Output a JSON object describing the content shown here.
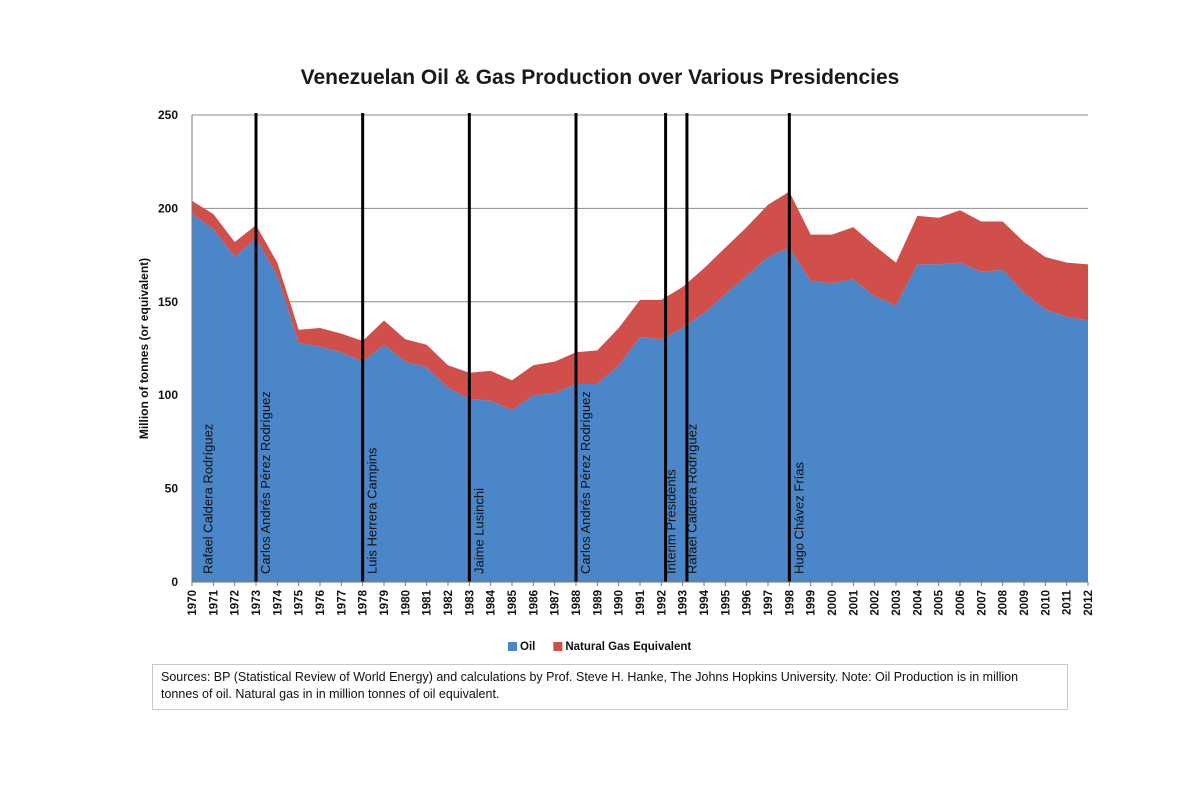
{
  "chart_data": {
    "type": "area",
    "stacked": true,
    "title": "Venezuelan Oil & Gas Production over Various Presidencies",
    "ylabel": "Million of tonnes (or equivalent)",
    "xlabel": "",
    "ylim": [
      0,
      250
    ],
    "yticks": [
      0,
      50,
      100,
      150,
      200,
      250
    ],
    "grid": "horizontal",
    "legend_position": "bottom",
    "x": [
      "1970",
      "1971",
      "1972",
      "1973",
      "1974",
      "1975",
      "1976",
      "1977",
      "1978",
      "1979",
      "1980",
      "1981",
      "1982",
      "1983",
      "1984",
      "1985",
      "1986",
      "1987",
      "1988",
      "1989",
      "1990",
      "1991",
      "1992",
      "1993",
      "1994",
      "1995",
      "1996",
      "1997",
      "1998",
      "1999",
      "2000",
      "2001",
      "2002",
      "2003",
      "2004",
      "2005",
      "2006",
      "2007",
      "2008",
      "2009",
      "2010",
      "2011",
      "2012"
    ],
    "series": [
      {
        "name": "Oil",
        "color": "#4a86c8",
        "values": [
          197,
          189,
          174,
          184,
          164,
          128,
          126,
          123,
          118,
          127,
          118,
          115,
          104,
          98,
          97,
          92,
          100,
          101,
          106,
          106,
          116,
          131,
          130,
          136,
          144,
          154,
          164,
          174,
          179,
          161,
          160,
          162,
          153,
          148,
          170,
          170,
          171,
          166,
          167,
          155,
          146,
          142,
          140
        ]
      },
      {
        "name": "Natural Gas Equivalent",
        "color": "#d14f4a",
        "values": [
          7,
          8,
          8,
          7,
          7,
          7,
          10,
          10,
          11,
          13,
          12,
          12,
          12,
          14,
          16,
          16,
          16,
          17,
          17,
          18,
          20,
          20,
          21,
          22,
          24,
          25,
          26,
          28,
          30,
          25,
          26,
          28,
          27,
          23,
          26,
          25,
          28,
          27,
          26,
          27,
          28,
          29,
          30
        ]
      }
    ],
    "presidencies": [
      {
        "name": "Rafael Caldera Rodríguez",
        "start": 1970.3
      },
      {
        "name": "Carlos Andrés Pérez Rodríguez",
        "start": 1973
      },
      {
        "name": "Luis Herrera Campins",
        "start": 1978
      },
      {
        "name": "Jaime Lusinchi",
        "start": 1983
      },
      {
        "name": "Carlos Andrés Pérez Rodríguez",
        "start": 1988
      },
      {
        "name": "Interim Presidents",
        "start": 1992
      },
      {
        "name": "Rafael Caldera Rodríguez",
        "start": 1993
      },
      {
        "name": "Hugo Chávez Frías",
        "start": 1998
      }
    ],
    "dividers": [
      1973,
      1978,
      1983,
      1988,
      1992.2,
      1993.2,
      1998
    ]
  },
  "sources": "Sources: BP (Statistical Review of World Energy) and calculations by Prof. Steve H. Hanke, The Johns Hopkins University. Note:  Oil Production is in million tonnes of oil.  Natural gas in in million tonnes of oil equivalent."
}
